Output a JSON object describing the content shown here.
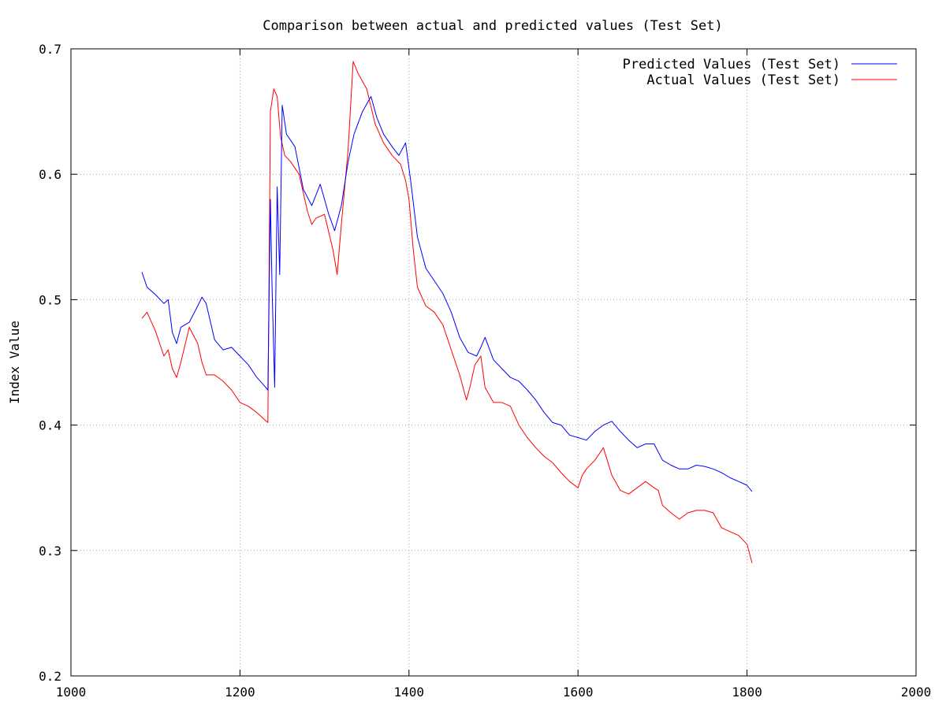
{
  "chart_data": {
    "type": "line",
    "title": "Comparison between actual and predicted values (Test Set)",
    "xlabel": "",
    "ylabel": "Index Value",
    "xlim": [
      1000,
      2000
    ],
    "ylim": [
      0.2,
      0.7
    ],
    "xticks": [
      "1000",
      "1200",
      "1400",
      "1600",
      "1800",
      "2000"
    ],
    "yticks": [
      "0.2",
      "0.3",
      "0.4",
      "0.5",
      "0.6",
      "0.7"
    ],
    "grid": true,
    "legend_position": "top-right",
    "series": [
      {
        "name": "Predicted Values (Test Set)",
        "color": "#0000ff",
        "x": [
          1084,
          1090,
          1100,
          1110,
          1115,
          1120,
          1125,
          1130,
          1140,
          1150,
          1155,
          1160,
          1170,
          1180,
          1190,
          1200,
          1210,
          1220,
          1228,
          1233,
          1236,
          1238,
          1241,
          1244,
          1247,
          1250,
          1255,
          1265,
          1275,
          1285,
          1295,
          1305,
          1312,
          1320,
          1328,
          1335,
          1345,
          1355,
          1362,
          1370,
          1380,
          1388,
          1396,
          1402,
          1410,
          1420,
          1430,
          1440,
          1450,
          1460,
          1470,
          1480,
          1485,
          1490,
          1500,
          1510,
          1520,
          1530,
          1540,
          1550,
          1560,
          1570,
          1580,
          1590,
          1600,
          1610,
          1620,
          1630,
          1640,
          1650,
          1660,
          1670,
          1680,
          1690,
          1700,
          1710,
          1720,
          1730,
          1740,
          1750,
          1760,
          1770,
          1780,
          1790,
          1800,
          1806
        ],
        "y": [
          0.522,
          0.51,
          0.504,
          0.497,
          0.5,
          0.474,
          0.465,
          0.478,
          0.482,
          0.495,
          0.502,
          0.497,
          0.468,
          0.46,
          0.462,
          0.455,
          0.448,
          0.438,
          0.432,
          0.428,
          0.58,
          0.51,
          0.43,
          0.59,
          0.52,
          0.655,
          0.632,
          0.622,
          0.588,
          0.575,
          0.592,
          0.568,
          0.555,
          0.575,
          0.61,
          0.632,
          0.65,
          0.662,
          0.645,
          0.632,
          0.622,
          0.615,
          0.625,
          0.595,
          0.55,
          0.525,
          0.515,
          0.505,
          0.49,
          0.47,
          0.458,
          0.455,
          0.462,
          0.47,
          0.452,
          0.445,
          0.438,
          0.435,
          0.428,
          0.42,
          0.41,
          0.402,
          0.4,
          0.392,
          0.39,
          0.388,
          0.395,
          0.4,
          0.403,
          0.395,
          0.388,
          0.382,
          0.385,
          0.385,
          0.372,
          0.368,
          0.365,
          0.365,
          0.368,
          0.367,
          0.365,
          0.362,
          0.358,
          0.355,
          0.352,
          0.347
        ]
      },
      {
        "name": "Actual Values (Test Set)",
        "color": "#ff0000",
        "x": [
          1084,
          1090,
          1100,
          1110,
          1115,
          1120,
          1125,
          1130,
          1140,
          1150,
          1155,
          1160,
          1170,
          1180,
          1190,
          1200,
          1210,
          1220,
          1228,
          1233,
          1236,
          1240,
          1244,
          1248,
          1253,
          1260,
          1270,
          1280,
          1285,
          1290,
          1300,
          1310,
          1315,
          1320,
          1328,
          1334,
          1340,
          1350,
          1360,
          1370,
          1380,
          1390,
          1396,
          1400,
          1405,
          1410,
          1420,
          1430,
          1440,
          1450,
          1460,
          1468,
          1472,
          1478,
          1485,
          1490,
          1500,
          1510,
          1520,
          1530,
          1540,
          1550,
          1560,
          1570,
          1580,
          1590,
          1600,
          1605,
          1610,
          1620,
          1630,
          1640,
          1650,
          1660,
          1670,
          1680,
          1690,
          1695,
          1700,
          1710,
          1720,
          1730,
          1740,
          1750,
          1760,
          1770,
          1780,
          1790,
          1800,
          1806
        ],
        "y": [
          0.485,
          0.49,
          0.475,
          0.455,
          0.46,
          0.445,
          0.438,
          0.45,
          0.478,
          0.465,
          0.45,
          0.44,
          0.44,
          0.435,
          0.428,
          0.418,
          0.415,
          0.41,
          0.405,
          0.402,
          0.65,
          0.668,
          0.662,
          0.63,
          0.615,
          0.61,
          0.6,
          0.57,
          0.56,
          0.565,
          0.568,
          0.54,
          0.52,
          0.56,
          0.62,
          0.69,
          0.68,
          0.668,
          0.64,
          0.625,
          0.615,
          0.608,
          0.595,
          0.58,
          0.54,
          0.51,
          0.495,
          0.49,
          0.48,
          0.46,
          0.44,
          0.42,
          0.43,
          0.448,
          0.455,
          0.43,
          0.418,
          0.418,
          0.415,
          0.4,
          0.39,
          0.382,
          0.375,
          0.37,
          0.362,
          0.355,
          0.35,
          0.36,
          0.365,
          0.372,
          0.382,
          0.36,
          0.348,
          0.345,
          0.35,
          0.355,
          0.35,
          0.348,
          0.336,
          0.33,
          0.325,
          0.33,
          0.332,
          0.332,
          0.33,
          0.318,
          0.315,
          0.312,
          0.305,
          0.29
        ]
      }
    ]
  }
}
